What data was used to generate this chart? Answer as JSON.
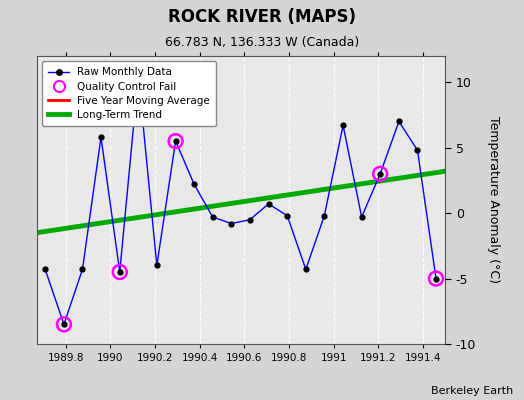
{
  "title": "ROCK RIVER (MAPS)",
  "subtitle": "66.783 N, 136.333 W (Canada)",
  "watermark": "Berkeley Earth",
  "ylabel": "Temperature Anomaly (°C)",
  "ylim": [
    -10,
    12
  ],
  "yticks": [
    -10,
    -5,
    0,
    5,
    10
  ],
  "xlim": [
    1989.67,
    1991.5
  ],
  "bg_color": "#d4d4d4",
  "plot_bg": "#e8e8e8",
  "raw_x": [
    1989.708,
    1989.792,
    1989.875,
    1989.958,
    1990.042,
    1990.125,
    1990.208,
    1990.292,
    1990.375,
    1990.458,
    1990.542,
    1990.625,
    1990.708,
    1990.792,
    1990.875,
    1990.958,
    1991.042,
    1991.125,
    1991.208,
    1991.292,
    1991.375,
    1991.458
  ],
  "raw_y": [
    -4.3,
    -8.5,
    -4.3,
    5.8,
    -4.5,
    10.5,
    -4.0,
    5.5,
    2.2,
    -0.3,
    -0.8,
    -0.5,
    0.7,
    -0.2,
    -4.3,
    -0.2,
    6.7,
    -0.3,
    3.0,
    7.0,
    4.8,
    -5.0
  ],
  "qc_fail_x": [
    1989.792,
    1990.042,
    1990.292,
    1991.208,
    1991.458
  ],
  "qc_fail_y": [
    -8.5,
    -4.5,
    5.5,
    3.0,
    -5.0
  ],
  "trend_x": [
    1989.67,
    1991.5
  ],
  "trend_y": [
    -1.5,
    3.2
  ],
  "raw_color": "#0000ff",
  "raw_marker_color": "#000000",
  "qc_color": "#ff00ff",
  "five_yr_color": "#ff0000",
  "trend_color": "#00aa00",
  "trend_linewidth": 3.5,
  "raw_linewidth": 1.0,
  "grid_color": "#ffffff",
  "xtick_vals": [
    1989.8,
    1990.0,
    1990.2,
    1990.4,
    1990.6,
    1990.8,
    1991.0,
    1991.2,
    1991.4
  ],
  "xtick_labels": [
    "1989.8",
    "1990",
    "1990.2",
    "1990.4",
    "1990.6",
    "1990.8",
    "1991",
    "1991.2",
    "1991.4"
  ]
}
